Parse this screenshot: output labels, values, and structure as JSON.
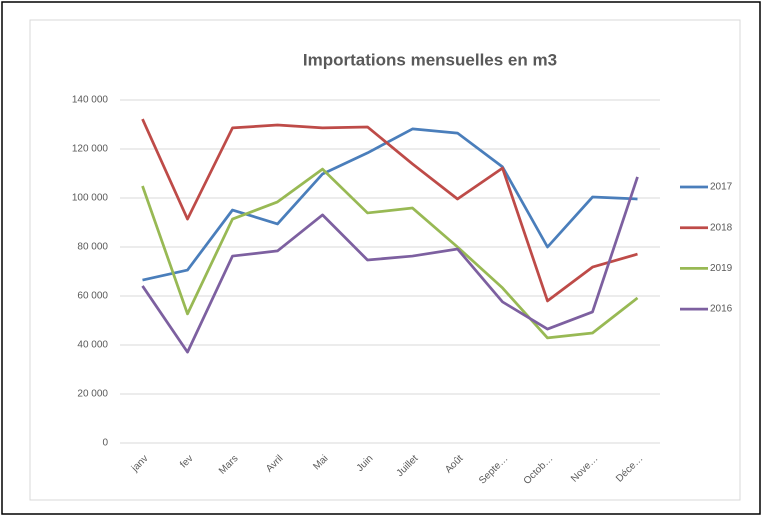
{
  "chart_data": {
    "type": "line",
    "title": "Importations mensuelles en m3",
    "categories": [
      "janv",
      "fev",
      "Mars",
      "Avril",
      "Mai",
      "Juin",
      "Juillet",
      "Août",
      "Septe…",
      "Octob…",
      "Nove…",
      "Déce…"
    ],
    "series": [
      {
        "name": "2017",
        "color": "#4a7ebb",
        "values": [
          66500,
          70600,
          95100,
          89400,
          109800,
          118400,
          128200,
          126500,
          112700,
          80000,
          100400,
          99600
        ]
      },
      {
        "name": "2018",
        "color": "#be4b48",
        "values": [
          132200,
          91400,
          128600,
          129800,
          128600,
          129000,
          113900,
          99600,
          112200,
          58000,
          71800,
          77100
        ]
      },
      {
        "name": "2019",
        "color": "#98b954",
        "values": [
          104900,
          52700,
          91400,
          98400,
          111800,
          93900,
          95900,
          80000,
          63300,
          42900,
          44900,
          59200
        ]
      },
      {
        "name": "2016",
        "color": "#7d60a0",
        "values": [
          64100,
          37100,
          76300,
          78400,
          93100,
          74700,
          76300,
          79200,
          57600,
          46500,
          53500,
          108600
        ]
      }
    ],
    "ylim": [
      0,
      140000
    ],
    "yticks": [
      0,
      {
        "value": 20000,
        "label": "20 000"
      },
      {
        "value": 40000,
        "label": "40 000"
      },
      {
        "value": 60000,
        "label": "60 000"
      },
      {
        "value": 80000,
        "label": "80 000"
      },
      {
        "value": 100000,
        "label": "100 000"
      },
      {
        "value": 120000,
        "label": "120 000"
      },
      {
        "value": 140000,
        "label": "140 000"
      }
    ],
    "grid": true,
    "legend": "right"
  }
}
